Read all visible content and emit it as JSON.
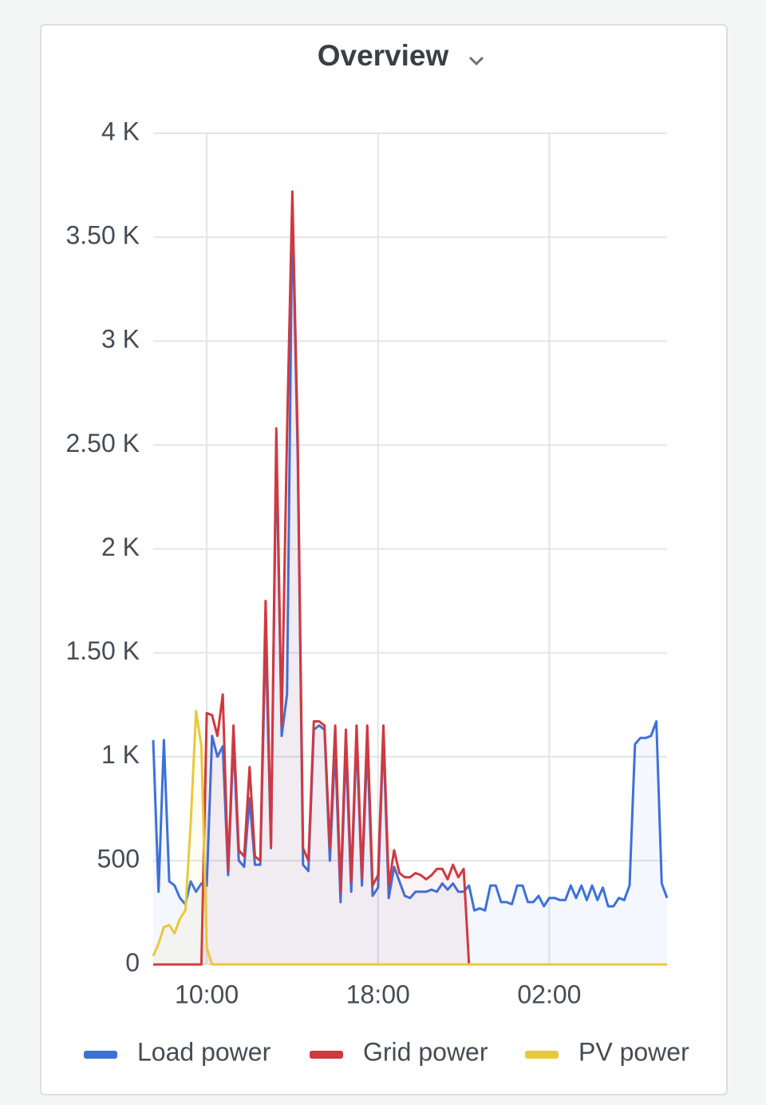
{
  "chart_data": {
    "type": "line",
    "title": "Overview",
    "x": [
      "07:30",
      "07:45",
      "08:00",
      "08:15",
      "08:30",
      "08:45",
      "09:00",
      "09:15",
      "09:30",
      "09:45",
      "10:00",
      "10:15",
      "10:30",
      "10:45",
      "11:00",
      "11:15",
      "11:30",
      "11:45",
      "12:00",
      "12:15",
      "12:30",
      "12:45",
      "13:00",
      "13:15",
      "13:30",
      "13:45",
      "14:00",
      "14:15",
      "14:30",
      "14:45",
      "15:00",
      "15:15",
      "15:30",
      "15:45",
      "16:00",
      "16:15",
      "16:30",
      "16:45",
      "17:00",
      "17:15",
      "17:30",
      "17:45",
      "18:00",
      "18:15",
      "18:30",
      "18:45",
      "19:00",
      "19:15",
      "19:30",
      "19:45",
      "20:00",
      "20:15",
      "20:30",
      "20:45",
      "21:00",
      "21:15",
      "21:30",
      "21:45",
      "22:00",
      "22:15",
      "22:30",
      "22:45",
      "23:00",
      "23:15",
      "23:30",
      "23:45",
      "00:00",
      "00:15",
      "00:30",
      "00:45",
      "01:00",
      "01:15",
      "01:30",
      "01:45",
      "02:00",
      "02:15",
      "02:30",
      "02:45",
      "03:00",
      "03:15",
      "03:30",
      "03:45",
      "04:00",
      "04:15",
      "04:30",
      "04:45",
      "05:00",
      "05:15",
      "05:30",
      "05:45",
      "06:00",
      "06:15",
      "06:30",
      "06:45",
      "07:00",
      "07:15",
      "07:30"
    ],
    "series": [
      {
        "name": "Load power",
        "color": "#3d71d9",
        "values": [
          1080,
          350,
          1080,
          400,
          380,
          320,
          290,
          400,
          350,
          390,
          380,
          1100,
          1000,
          1050,
          430,
          1080,
          500,
          470,
          800,
          480,
          480,
          1600,
          560,
          2500,
          1100,
          1300,
          3650,
          2450,
          480,
          450,
          1130,
          1150,
          1130,
          500,
          1050,
          300,
          1050,
          350,
          1100,
          380,
          1060,
          330,
          370,
          1100,
          320,
          470,
          400,
          330,
          320,
          350,
          350,
          350,
          360,
          350,
          390,
          360,
          390,
          350,
          350,
          380,
          260,
          270,
          260,
          380,
          380,
          300,
          300,
          290,
          380,
          380,
          300,
          300,
          330,
          280,
          320,
          320,
          310,
          310,
          380,
          320,
          380,
          310,
          380,
          310,
          370,
          280,
          280,
          320,
          310,
          380,
          1060,
          1090,
          1090,
          1100,
          1170,
          390,
          320
        ]
      },
      {
        "name": "Grid power",
        "color": "#d0393f",
        "values": [
          0,
          0,
          0,
          0,
          0,
          0,
          0,
          0,
          0,
          0,
          1210,
          1200,
          1100,
          1300,
          450,
          1150,
          550,
          520,
          950,
          520,
          500,
          1750,
          570,
          2580,
          1150,
          2550,
          3720,
          2530,
          560,
          500,
          1170,
          1170,
          1150,
          560,
          1150,
          350,
          1130,
          400,
          1150,
          420,
          1150,
          380,
          430,
          1150,
          380,
          550,
          440,
          420,
          420,
          440,
          430,
          410,
          430,
          460,
          460,
          410,
          480,
          420,
          460,
          0,
          0,
          0,
          0,
          0,
          0,
          0,
          0,
          0,
          0,
          0,
          0,
          0,
          0,
          0,
          0,
          0,
          0,
          0,
          0,
          0,
          0,
          0,
          0,
          0,
          0,
          0,
          0,
          0,
          0,
          0,
          0,
          0,
          0,
          0,
          0,
          0,
          0
        ]
      },
      {
        "name": "PV power",
        "color": "#e8c93b",
        "values": [
          40,
          100,
          180,
          190,
          150,
          220,
          260,
          680,
          1220,
          1050,
          80,
          0,
          0,
          0,
          0,
          0,
          0,
          0,
          0,
          0,
          0,
          0,
          0,
          0,
          0,
          0,
          0,
          0,
          0,
          0,
          0,
          0,
          0,
          0,
          0,
          0,
          0,
          0,
          0,
          0,
          0,
          0,
          0,
          0,
          0,
          0,
          0,
          0,
          0,
          0,
          0,
          0,
          0,
          0,
          0,
          0,
          0,
          0,
          0,
          0,
          0,
          0,
          0,
          0,
          0,
          0,
          0,
          0,
          0,
          0,
          0,
          0,
          0,
          0,
          0,
          0,
          0,
          0,
          0,
          0,
          0,
          0,
          0,
          0,
          0,
          0,
          0,
          0,
          0,
          0,
          0,
          0,
          0,
          0,
          0,
          0,
          0
        ]
      }
    ],
    "xticks": [
      "10:00",
      "18:00",
      "02:00"
    ],
    "ylim": [
      0,
      4000
    ],
    "yticks": [
      0,
      500,
      {
        "value": 1000,
        "label": "1 K"
      },
      {
        "value": 1500,
        "label": "1.50 K"
      },
      {
        "value": 2000,
        "label": "2 K"
      },
      {
        "value": 2500,
        "label": "2.50 K"
      },
      {
        "value": 3000,
        "label": "3 K"
      },
      {
        "value": 3500,
        "label": "3.50 K"
      },
      {
        "value": 4000,
        "label": "4 K"
      }
    ],
    "grid": true,
    "legend": "bottom"
  }
}
